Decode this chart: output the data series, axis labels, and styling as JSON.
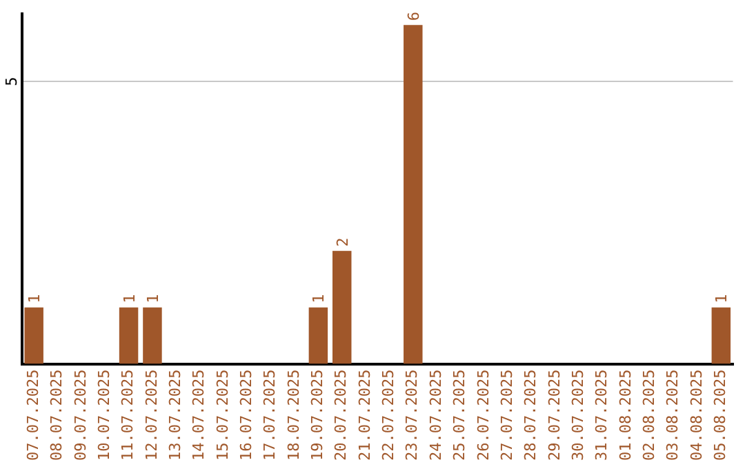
{
  "chart_data": {
    "type": "bar",
    "categories": [
      "07.07.2025",
      "08.07.2025",
      "09.07.2025",
      "10.07.2025",
      "11.07.2025",
      "12.07.2025",
      "13.07.2025",
      "14.07.2025",
      "15.07.2025",
      "16.07.2025",
      "17.07.2025",
      "18.07.2025",
      "19.07.2025",
      "20.07.2025",
      "21.07.2025",
      "22.07.2025",
      "23.07.2025",
      "24.07.2025",
      "25.07.2025",
      "26.07.2025",
      "27.07.2025",
      "28.07.2025",
      "29.07.2025",
      "30.07.2025",
      "31.07.2025",
      "01.08.2025",
      "02.08.2025",
      "03.08.2025",
      "04.08.2025",
      "05.08.2025"
    ],
    "values": [
      1,
      0,
      0,
      0,
      1,
      1,
      0,
      0,
      0,
      0,
      0,
      0,
      1,
      2,
      0,
      0,
      6,
      0,
      0,
      0,
      0,
      0,
      0,
      0,
      0,
      0,
      0,
      0,
      0,
      1
    ],
    "value_labels": [
      "1",
      null,
      null,
      null,
      "1",
      "1",
      null,
      null,
      null,
      null,
      null,
      null,
      "1",
      "2",
      null,
      null,
      "6",
      null,
      null,
      null,
      null,
      null,
      null,
      null,
      null,
      null,
      null,
      null,
      null,
      "1"
    ],
    "color": "#a0572a",
    "ylim": [
      0,
      6.2
    ],
    "yticks": [
      5
    ],
    "grid": "y",
    "legend": false
  }
}
